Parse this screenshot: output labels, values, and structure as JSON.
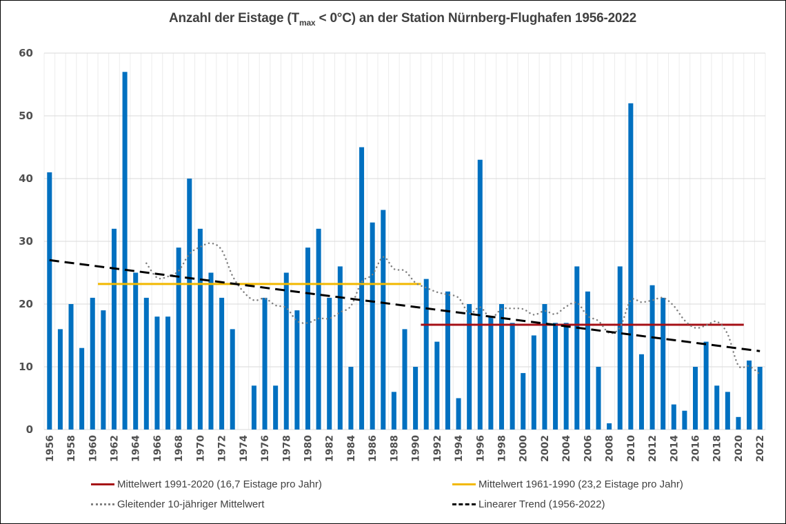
{
  "title": {
    "prefix": "Anzahl der Eistage (T",
    "subscript": "max",
    "suffix": " < 0°C) an der Station Nürnberg-Flughafen 1956-2022"
  },
  "legend": {
    "items": [
      {
        "label": "Mittelwert 1991-2020 (16,7 Eistage pro Jahr)",
        "style": "solid",
        "color": "#a50f15"
      },
      {
        "label": "Mittelwert 1961-1990 (23,2 Eistage pro Jahr)",
        "style": "solid",
        "color": "#f2b800"
      },
      {
        "label": "Gleitender 10-jähriger Mittelwert",
        "style": "dotted",
        "color": "#808080"
      },
      {
        "label": "Linearer Trend (1956-2022)",
        "style": "dashed",
        "color": "#000000"
      }
    ]
  },
  "chart_data": {
    "type": "bar",
    "title": "Anzahl der Eistage (Tmax < 0°C) an der Station Nürnberg-Flughafen 1956-2022",
    "xlabel": "",
    "ylabel": "",
    "ylim": [
      0,
      60
    ],
    "yticks": [
      0,
      10,
      20,
      30,
      40,
      50,
      60
    ],
    "grid": true,
    "legend_position": "bottom",
    "bar_color": "#0070c0",
    "categories": [
      1956,
      1957,
      1958,
      1959,
      1960,
      1961,
      1962,
      1963,
      1964,
      1965,
      1966,
      1967,
      1968,
      1969,
      1970,
      1971,
      1972,
      1973,
      1974,
      1975,
      1976,
      1977,
      1978,
      1979,
      1980,
      1981,
      1982,
      1983,
      1984,
      1985,
      1986,
      1987,
      1988,
      1989,
      1990,
      1991,
      1992,
      1993,
      1994,
      1995,
      1996,
      1997,
      1998,
      1999,
      2000,
      2001,
      2002,
      2003,
      2004,
      2005,
      2006,
      2007,
      2008,
      2009,
      2010,
      2011,
      2012,
      2013,
      2014,
      2015,
      2016,
      2017,
      2018,
      2019,
      2020,
      2021,
      2022
    ],
    "xtick_labels": [
      "1956",
      "1958",
      "1960",
      "1962",
      "1964",
      "1966",
      "1968",
      "1970",
      "1972",
      "1974",
      "1976",
      "1978",
      "1980",
      "1982",
      "1984",
      "1986",
      "1988",
      "1990",
      "1992",
      "1994",
      "1996",
      "1998",
      "2000",
      "2002",
      "2004",
      "2006",
      "2008",
      "2010",
      "2012",
      "2014",
      "2016",
      "2018",
      "2020",
      "2022"
    ],
    "series": [
      {
        "name": "Eistage",
        "type": "bar",
        "values": [
          41,
          16,
          20,
          13,
          21,
          19,
          32,
          57,
          25,
          21,
          18,
          18,
          29,
          40,
          32,
          25,
          21,
          16,
          0,
          7,
          21,
          7,
          25,
          19,
          29,
          32,
          21,
          26,
          10,
          45,
          33,
          35,
          6,
          16,
          10,
          24,
          14,
          22,
          5,
          20,
          43,
          18,
          20,
          17,
          9,
          15,
          20,
          17,
          17,
          26,
          22,
          10,
          1,
          26,
          52,
          12,
          23,
          21,
          4,
          3,
          10,
          14,
          7,
          6,
          2,
          11,
          10
        ]
      },
      {
        "name": "Mittelwert 1991-2020 (16,7 Eistage pro Jahr)",
        "type": "hline",
        "value": 16.7,
        "x_range": [
          1991,
          2020
        ],
        "color": "#a50f15"
      },
      {
        "name": "Mittelwert 1961-1990 (23,2 Eistage pro Jahr)",
        "type": "hline",
        "value": 23.2,
        "x_range": [
          1961,
          1990
        ],
        "color": "#f2b800"
      },
      {
        "name": "Gleitender 10-jähriger Mittelwert",
        "type": "moving_average",
        "window": 10,
        "color": "#808080"
      },
      {
        "name": "Linearer Trend (1956-2022)",
        "type": "trend",
        "start": [
          1956,
          27.0
        ],
        "end": [
          2022,
          12.5
        ],
        "color": "#000000"
      }
    ]
  }
}
